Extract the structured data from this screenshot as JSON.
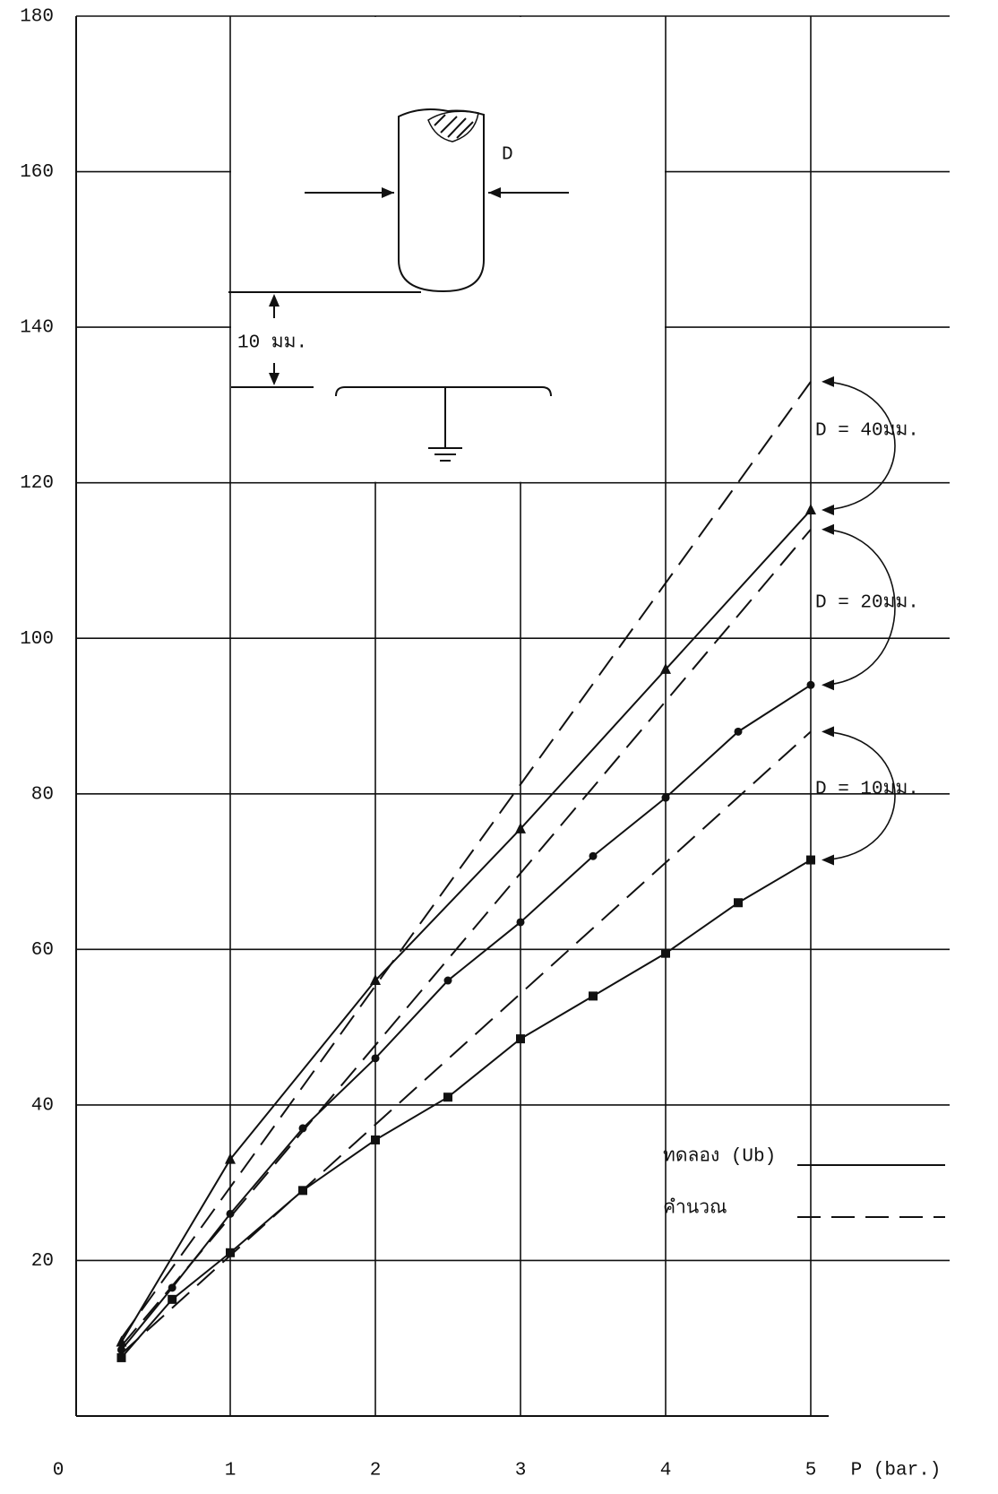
{
  "chart_data": {
    "type": "line",
    "x_label": "P (bar.)",
    "xlim": [
      0,
      5
    ],
    "xticks": [
      1,
      2,
      3,
      4,
      5
    ],
    "ylim": [
      0,
      180
    ],
    "yticks": [
      0,
      20,
      40,
      60,
      80,
      100,
      120,
      140,
      160,
      180
    ],
    "grid": true,
    "color": "#111111",
    "legend": [
      {
        "label": "ทดลอง (Ub)",
        "style": "solid"
      },
      {
        "label": "คำนวณ",
        "style": "dashed"
      }
    ],
    "groups": [
      {
        "label": "D = 40มม.",
        "marker": "triangle",
        "measured": {
          "x": [
            0.25,
            1,
            2,
            3,
            4,
            5
          ],
          "values": [
            9.5,
            33,
            56,
            75.5,
            96,
            116.5
          ]
        },
        "calculated": {
          "x": [
            0.25,
            5
          ],
          "values": [
            10,
            133
          ]
        }
      },
      {
        "label": "D = 20มม.",
        "marker": "dot",
        "measured": {
          "x": [
            0.25,
            0.6,
            1,
            1.5,
            2,
            2.5,
            3,
            3.5,
            4,
            4.5,
            5
          ],
          "values": [
            8.5,
            16.5,
            26,
            37,
            46,
            56,
            63.5,
            72,
            79.5,
            88,
            94
          ]
        },
        "calculated": {
          "x": [
            0.25,
            5
          ],
          "values": [
            9,
            114
          ]
        }
      },
      {
        "label": "D = 10มม.",
        "marker": "square",
        "measured": {
          "x": [
            0.25,
            0.6,
            1,
            1.5,
            2,
            2.5,
            3,
            3.5,
            4,
            4.5,
            5
          ],
          "values": [
            7.5,
            15,
            21,
            29,
            35.5,
            41,
            48.5,
            54,
            59.5,
            66,
            71.5
          ]
        },
        "calculated": {
          "x": [
            0.25,
            5
          ],
          "values": [
            8,
            88
          ]
        }
      }
    ],
    "inset": {
      "diameter_label": "D",
      "gap_label": "10 มม."
    }
  }
}
